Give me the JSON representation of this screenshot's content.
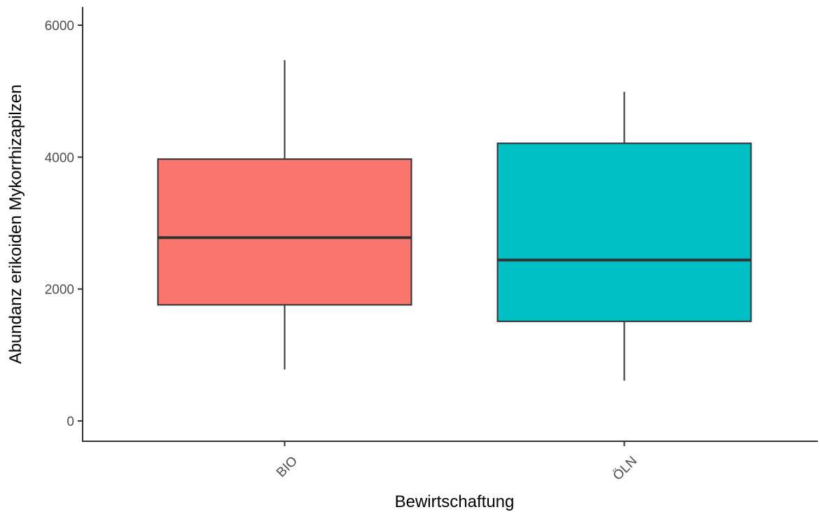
{
  "chart_data": {
    "type": "box",
    "title": "",
    "xlabel": "Bewirtschaftung",
    "ylabel": "Abundanz erikoiden Mykorrhizapilzen",
    "ylim": [
      -300,
      6300
    ],
    "yticks": [
      0,
      2000,
      4000,
      6000
    ],
    "ytick_labels": [
      "0",
      "2000",
      "4000",
      "6000"
    ],
    "categories": [
      "BIO",
      "ÖLN"
    ],
    "boxes": [
      {
        "category": "BIO",
        "whisker_low": 780,
        "q1": 1760,
        "median": 2780,
        "q3": 3970,
        "whisker_high": 5470,
        "fill": "#F8766D"
      },
      {
        "category": "ÖLN",
        "whisker_low": 610,
        "q1": 1510,
        "median": 2440,
        "q3": 4210,
        "whisker_high": 4990,
        "fill": "#00BFC4"
      }
    ],
    "grid": false,
    "legend": "none",
    "x_tick_label_rotation": -45
  },
  "colors": {
    "axis": "#333333",
    "box_outline": "#333333",
    "tick_label": "#4d4d4d",
    "title": "#000000"
  }
}
